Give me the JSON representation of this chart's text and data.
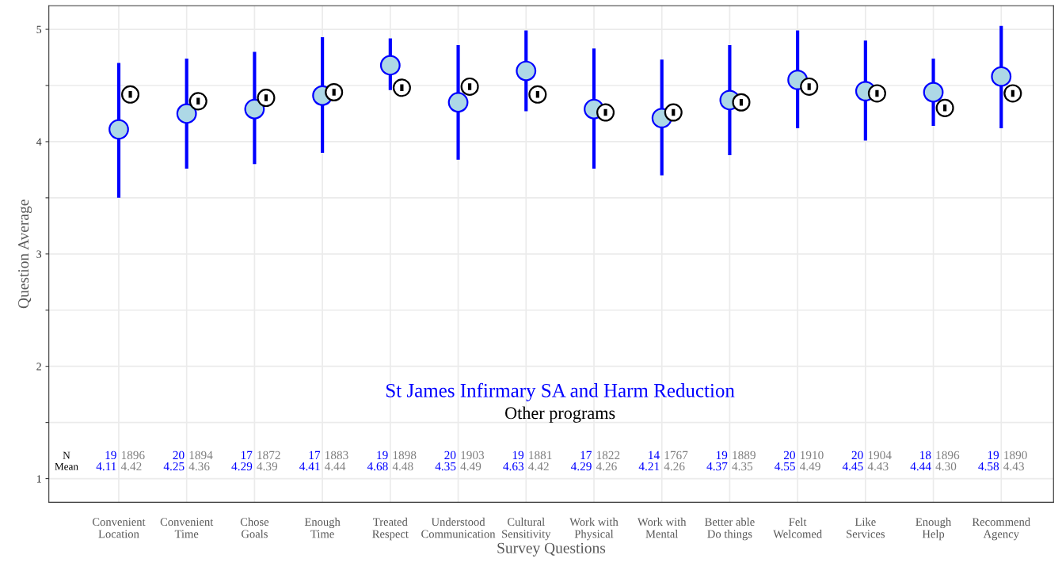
{
  "chart_data": {
    "type": "scatter",
    "xlabel": "Survey Questions",
    "ylabel": "Question Average",
    "categories": [
      "Convenient\nLocation",
      "Convenient\nTime",
      "Chose\nGoals",
      "Enough\nTime",
      "Treated\nRespect",
      "Understood\nCommunication",
      "Cultural\nSensitivity",
      "Work with\nPhysical",
      "Work with\nMental",
      "Better able\nDo things",
      "Felt\nWelcomed",
      "Like\nServices",
      "Enough\nHelp",
      "Recommend\nAgency"
    ],
    "series": [
      {
        "name": "St James Infirmary SA and Harm Reduction",
        "color": "#0000ff",
        "values": [
          4.11,
          4.25,
          4.29,
          4.41,
          4.68,
          4.35,
          4.63,
          4.29,
          4.21,
          4.37,
          4.55,
          4.45,
          4.44,
          4.58
        ],
        "errors": [
          [
            3.5,
            4.7
          ],
          [
            3.76,
            4.74
          ],
          [
            3.8,
            4.8
          ],
          [
            3.9,
            4.93
          ],
          [
            4.46,
            4.92
          ],
          [
            3.84,
            4.86
          ],
          [
            4.27,
            4.99
          ],
          [
            3.76,
            4.83
          ],
          [
            3.7,
            4.73
          ],
          [
            3.88,
            4.86
          ],
          [
            4.12,
            4.99
          ],
          [
            4.01,
            4.9
          ],
          [
            4.14,
            4.74
          ],
          [
            4.12,
            5.03
          ]
        ]
      },
      {
        "name": "Other programs",
        "color": "#000000",
        "values": [
          4.42,
          4.36,
          4.39,
          4.44,
          4.48,
          4.49,
          4.42,
          4.26,
          4.26,
          4.35,
          4.49,
          4.43,
          4.3,
          4.43
        ],
        "errors": [
          0.03,
          0.03,
          0.03,
          0.03,
          0.03,
          0.03,
          0.03,
          0.03,
          0.03,
          0.03,
          0.03,
          0.03,
          0.03,
          0.03
        ]
      }
    ],
    "annotations": [
      "N",
      "Mean",
      "19",
      "20",
      "17",
      "17",
      "19",
      "20",
      "19",
      "17",
      "14",
      "19",
      "20",
      "20",
      "18",
      "19",
      "1896",
      "1894",
      "1872",
      "1883",
      "1898",
      "1903",
      "1881",
      "1822",
      "1767",
      "1889",
      "1910",
      "1904",
      "1896",
      "1890",
      "4.11",
      "4.25",
      "4.29",
      "4.41",
      "4.68",
      "4.35",
      "4.63",
      "4.29",
      "4.21",
      "4.37",
      "4.55",
      "4.45",
      "4.44",
      "4.58",
      "4.42",
      "4.36",
      "4.39",
      "4.44",
      "4.48",
      "4.49",
      "4.42",
      "4.26",
      "4.26",
      "4.35",
      "4.49",
      "4.43",
      "4.30",
      "4.43"
    ],
    "ylim": [
      0.79,
      5.21
    ],
    "yticks": [
      1,
      {
        "value": 1.5,
        "label": null
      },
      2,
      {
        "value": 2.5,
        "label": null
      },
      3,
      {
        "value": 3.5,
        "label": null
      },
      4,
      {
        "value": 4.5,
        "label": null
      },
      5
    ],
    "grid": true,
    "marker": "circle",
    "legend": "bottom"
  }
}
